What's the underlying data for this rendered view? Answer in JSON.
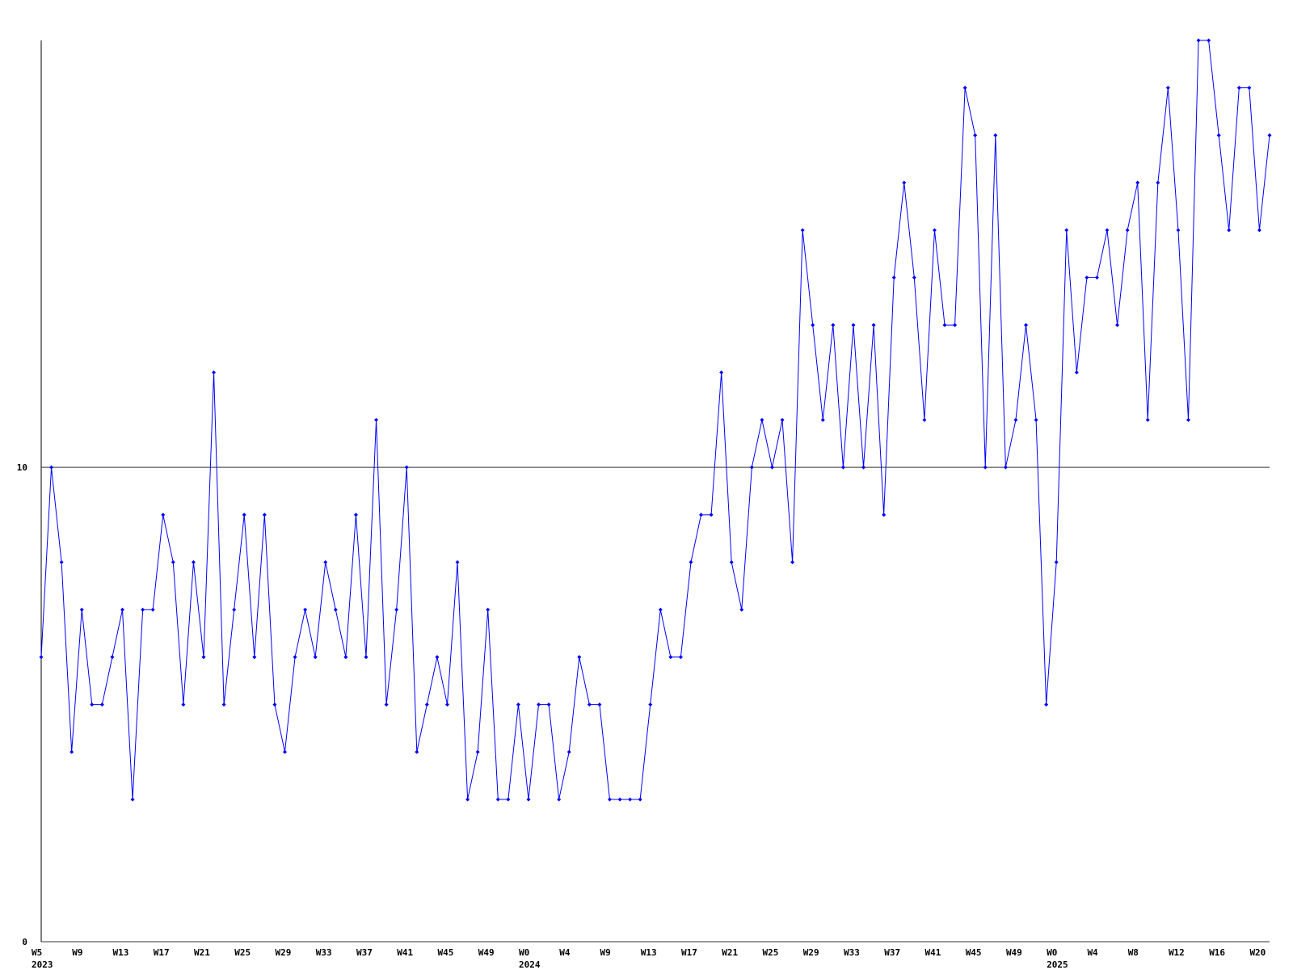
{
  "chart_data": {
    "type": "line",
    "categories": [
      "W5",
      null,
      null,
      null,
      "W9",
      null,
      null,
      null,
      "W13",
      null,
      null,
      null,
      "W17",
      null,
      null,
      null,
      "W21",
      null,
      null,
      null,
      "W25",
      null,
      null,
      null,
      "W29",
      null,
      null,
      null,
      "W33",
      null,
      null,
      null,
      "W37",
      null,
      null,
      null,
      "W41",
      null,
      null,
      null,
      "W45",
      null,
      null,
      null,
      "W49",
      null,
      null,
      null,
      "W0",
      null,
      null,
      null,
      "W4",
      null,
      null,
      null,
      "W9",
      null,
      null,
      null,
      "W13",
      null,
      null,
      null,
      "W17",
      null,
      null,
      null,
      "W21",
      null,
      null,
      null,
      "W25",
      null,
      null,
      null,
      "W29",
      null,
      null,
      null,
      "W33",
      null,
      null,
      null,
      "W37",
      null,
      null,
      null,
      "W41",
      null,
      null,
      null,
      "W45",
      null,
      null,
      null,
      "W49",
      null,
      null,
      null,
      "W0",
      null,
      null,
      null,
      "W4",
      null,
      null,
      null,
      "W8",
      null,
      null,
      null,
      "W12",
      null,
      null,
      null,
      "W16",
      null,
      null,
      null,
      "W20",
      null
    ],
    "category_years": [
      "2023",
      null,
      null,
      null,
      null,
      null,
      null,
      null,
      null,
      null,
      null,
      null,
      null,
      null,
      null,
      null,
      null,
      null,
      null,
      null,
      null,
      null,
      null,
      null,
      null,
      null,
      null,
      null,
      null,
      null,
      null,
      null,
      null,
      null,
      null,
      null,
      null,
      null,
      null,
      null,
      null,
      null,
      null,
      null,
      null,
      null,
      null,
      null,
      "2024",
      null,
      null,
      null,
      null,
      null,
      null,
      null,
      null,
      null,
      null,
      null,
      null,
      null,
      null,
      null,
      null,
      null,
      null,
      null,
      null,
      null,
      null,
      null,
      null,
      null,
      null,
      null,
      null,
      null,
      null,
      null,
      null,
      null,
      null,
      null,
      null,
      null,
      null,
      null,
      null,
      null,
      null,
      null,
      null,
      null,
      null,
      null,
      null,
      null,
      null,
      null,
      "2025",
      null,
      null,
      null,
      null,
      null,
      null,
      null,
      null,
      null,
      null,
      null,
      null,
      null,
      null,
      null,
      null,
      null,
      null,
      null,
      null,
      null
    ],
    "series": [
      {
        "color": "#0000ff",
        "values": [
          6,
          10,
          8,
          4,
          7,
          5,
          5,
          6,
          7,
          3,
          7,
          7,
          9,
          8,
          5,
          8,
          6,
          12,
          5,
          7,
          9,
          6,
          9,
          5,
          4,
          6,
          7,
          6,
          8,
          7,
          6,
          9,
          6,
          11,
          5,
          7,
          10,
          4,
          5,
          6,
          5,
          8,
          3,
          4,
          7,
          3,
          3,
          5,
          3,
          5,
          5,
          3,
          4,
          6,
          5,
          5,
          3,
          3,
          3,
          3,
          5,
          7,
          6,
          6,
          8,
          9,
          9,
          12,
          8,
          7,
          10,
          11,
          10,
          11,
          8,
          15,
          13,
          11,
          13,
          10,
          13,
          10,
          13,
          9,
          14,
          16,
          14,
          11,
          15,
          13,
          13,
          18,
          17,
          10,
          17,
          10,
          11,
          13,
          11,
          5,
          8,
          15,
          12,
          14,
          14,
          15,
          13,
          15,
          16,
          11,
          16,
          18,
          15,
          11,
          19,
          19,
          17,
          15,
          18,
          18,
          15,
          17
        ]
      }
    ],
    "ylim": [
      0,
      19
    ],
    "yticks": [
      0,
      10
    ],
    "grid": true
  }
}
